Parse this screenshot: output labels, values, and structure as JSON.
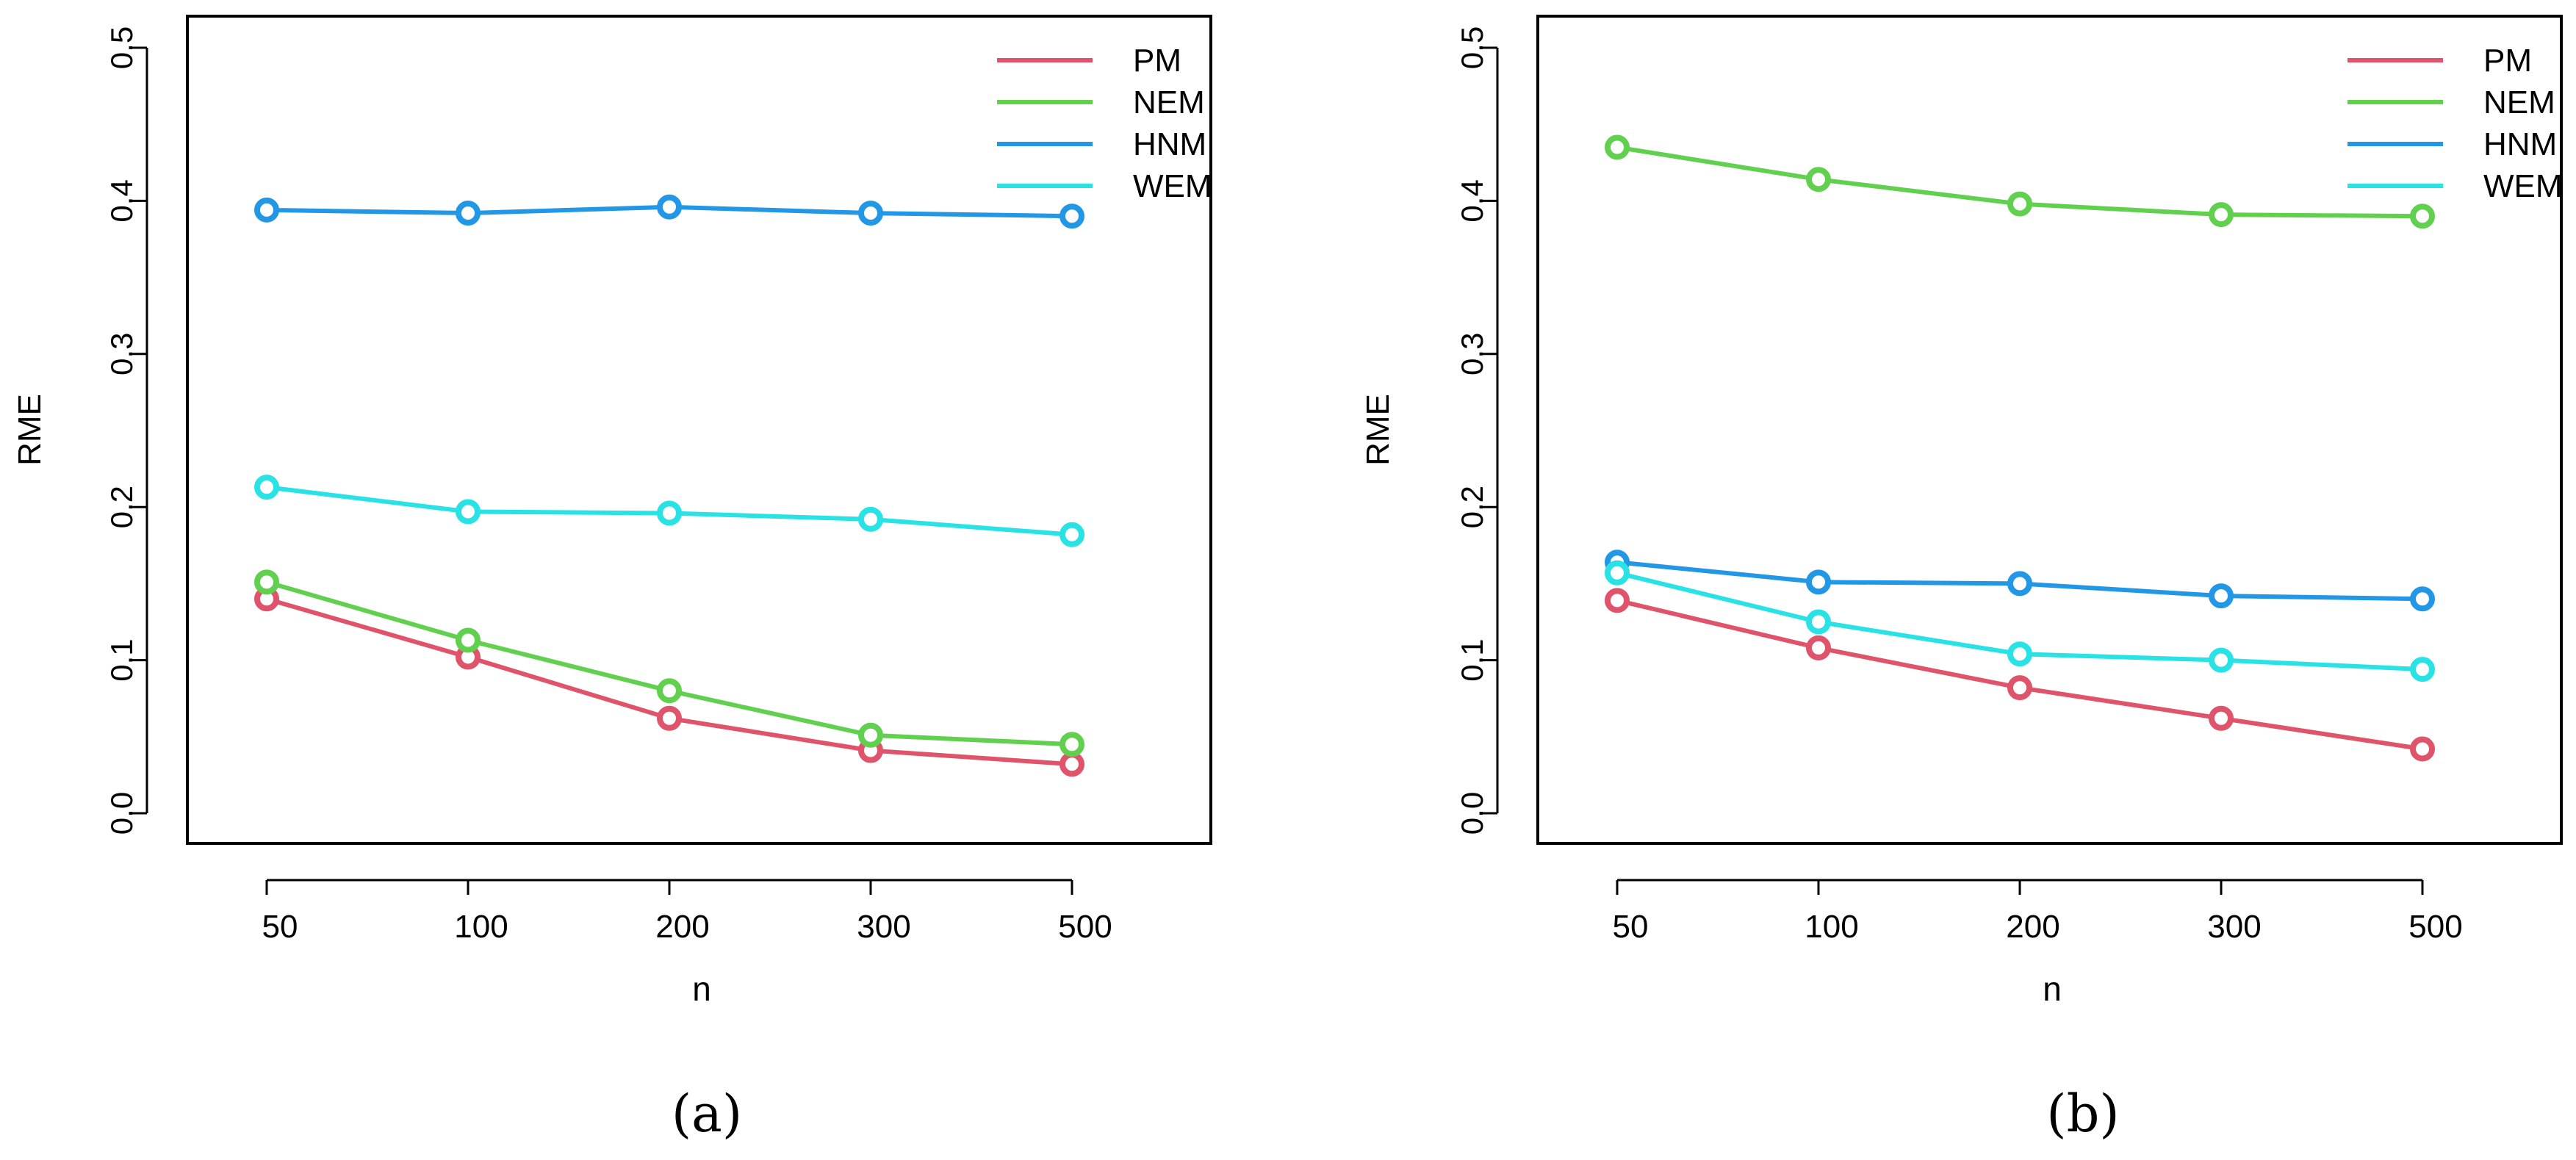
{
  "chart_data": [
    {
      "type": "line",
      "panel_label": "(a)",
      "xlabel": "n",
      "ylabel": "RME",
      "categories": [
        "50",
        "100",
        "200",
        "300",
        "500"
      ],
      "ylim": [
        0.0,
        0.5
      ],
      "yticks": [
        "0.0",
        "0.1",
        "0.2",
        "0.3",
        "0.4",
        "0.5"
      ],
      "legend_position": "top-right",
      "series": [
        {
          "name": "PM",
          "color": "#DF536B",
          "values": [
            0.14,
            0.102,
            0.062,
            0.041,
            0.032
          ]
        },
        {
          "name": "NEM",
          "color": "#61D04F",
          "values": [
            0.151,
            0.113,
            0.08,
            0.051,
            0.045
          ]
        },
        {
          "name": "HNM",
          "color": "#2297E6",
          "values": [
            0.394,
            0.392,
            0.396,
            0.392,
            0.39
          ]
        },
        {
          "name": "WEM",
          "color": "#28E2E5",
          "values": [
            0.213,
            0.197,
            0.196,
            0.192,
            0.182
          ]
        }
      ]
    },
    {
      "type": "line",
      "panel_label": "(b)",
      "xlabel": "n",
      "ylabel": "RME",
      "categories": [
        "50",
        "100",
        "200",
        "300",
        "500"
      ],
      "ylim": [
        0.0,
        0.5
      ],
      "yticks": [
        "0.0",
        "0.1",
        "0.2",
        "0.3",
        "0.4",
        "0.5"
      ],
      "legend_position": "top-right",
      "series": [
        {
          "name": "PM",
          "color": "#DF536B",
          "values": [
            0.139,
            0.108,
            0.082,
            0.062,
            0.042
          ]
        },
        {
          "name": "NEM",
          "color": "#61D04F",
          "values": [
            0.435,
            0.414,
            0.398,
            0.391,
            0.39
          ]
        },
        {
          "name": "HNM",
          "color": "#2297E6",
          "values": [
            0.164,
            0.151,
            0.15,
            0.142,
            0.14
          ]
        },
        {
          "name": "WEM",
          "color": "#28E2E5",
          "values": [
            0.157,
            0.125,
            0.104,
            0.1,
            0.094
          ]
        }
      ]
    }
  ]
}
